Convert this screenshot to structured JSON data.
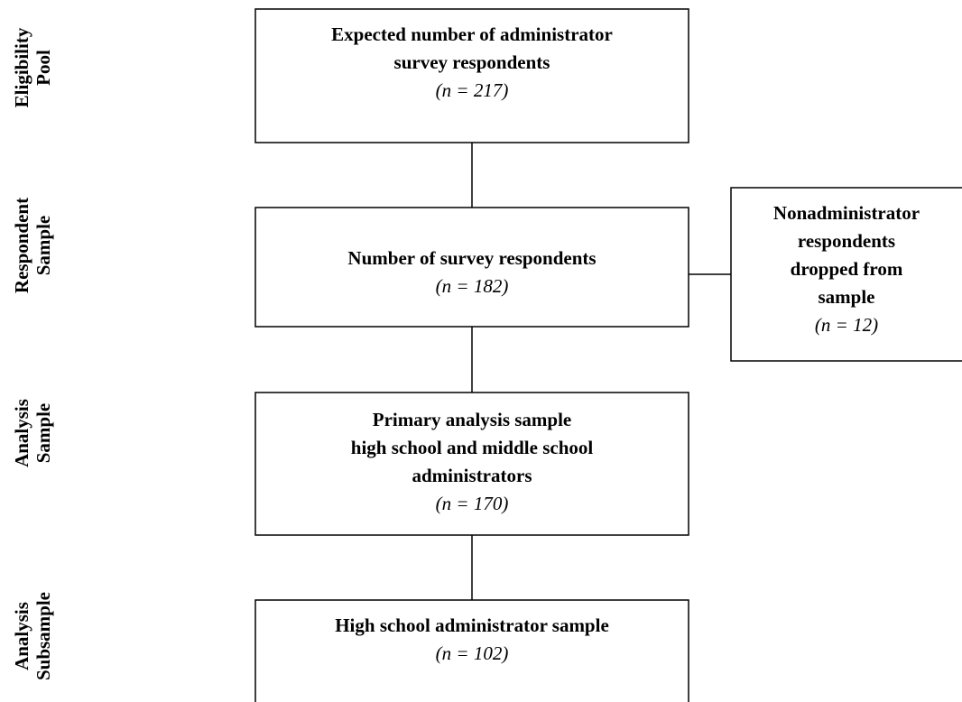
{
  "stages": [
    {
      "lines": [
        "Eligibility",
        "Pool"
      ]
    },
    {
      "lines": [
        "Respondent",
        "Sample"
      ]
    },
    {
      "lines": [
        "Analysis",
        "Sample"
      ]
    },
    {
      "lines": [
        "Analysis",
        "Subsample"
      ]
    }
  ],
  "nodes": [
    {
      "lines": [
        "Expected number of administrator",
        "survey respondents"
      ],
      "count": "(n = 217)"
    },
    {
      "lines": [
        "Number of survey respondents"
      ],
      "count": "(n = 182)"
    },
    {
      "lines": [
        "Primary analysis sample",
        "high school and middle school",
        "administrators"
      ],
      "count": "(n = 170)"
    },
    {
      "lines": [
        "High school administrator sample"
      ],
      "count": "(n = 102)"
    },
    {
      "lines": [
        "Nonadministrator",
        "respondents",
        "dropped from",
        "sample"
      ],
      "count": "(n = 12)"
    }
  ]
}
